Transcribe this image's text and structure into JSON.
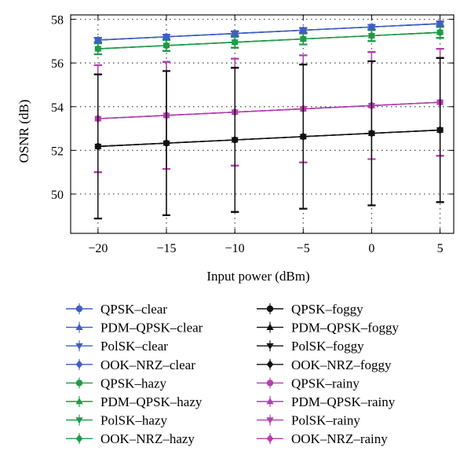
{
  "chart_data": {
    "type": "line",
    "title": "",
    "xlabel": "Input power (dBm)",
    "ylabel": "OSNR (dB)",
    "x": [
      -20,
      -15,
      -10,
      -5,
      0,
      5
    ],
    "xticks": [
      -20,
      -15,
      -10,
      -5,
      0,
      5
    ],
    "yticks": [
      50,
      52,
      54,
      56,
      58
    ],
    "xlim": [
      -22,
      6
    ],
    "ylim": [
      48.2,
      58.2
    ],
    "grid": "dotted",
    "legend_placement": "below-plot, two columns",
    "series": [
      {
        "name": "QPSK–clear",
        "color": "#3f5fbf",
        "marker": "circle",
        "values": [
          57.05,
          57.2,
          57.35,
          57.5,
          57.65,
          57.8
        ],
        "error": [
          0.1,
          0.1,
          0.1,
          0.1,
          0.1,
          0.1
        ]
      },
      {
        "name": "PDM–QPSK–clear",
        "color": "#3f5fbf",
        "marker": "triangle-up",
        "values": [
          57.05,
          57.2,
          57.35,
          57.5,
          57.65,
          57.8
        ],
        "error": [
          0.1,
          0.1,
          0.1,
          0.1,
          0.1,
          0.1
        ]
      },
      {
        "name": "PolSK–clear",
        "color": "#3f5fbf",
        "marker": "triangle-down",
        "values": [
          57.05,
          57.2,
          57.35,
          57.5,
          57.65,
          57.8
        ],
        "error": [
          0.1,
          0.1,
          0.1,
          0.1,
          0.1,
          0.1
        ]
      },
      {
        "name": "OOK–NRZ–clear",
        "color": "#3f5fbf",
        "marker": "diamond",
        "values": [
          57.05,
          57.2,
          57.35,
          57.5,
          57.65,
          57.8
        ],
        "error": [
          0.1,
          0.1,
          0.1,
          0.1,
          0.1,
          0.1
        ]
      },
      {
        "name": "QPSK–hazy",
        "color": "#1f9b46",
        "marker": "circle",
        "values": [
          56.65,
          56.8,
          56.95,
          57.1,
          57.25,
          57.4
        ],
        "error": [
          0.25,
          0.25,
          0.25,
          0.25,
          0.25,
          0.25
        ]
      },
      {
        "name": "PDM–QPSK–hazy",
        "color": "#1f9b46",
        "marker": "triangle-up",
        "values": [
          56.65,
          56.8,
          56.95,
          57.1,
          57.25,
          57.4
        ],
        "error": [
          0.25,
          0.25,
          0.25,
          0.25,
          0.25,
          0.25
        ]
      },
      {
        "name": "PolSK–hazy",
        "color": "#1f9b46",
        "marker": "triangle-down",
        "values": [
          56.65,
          56.8,
          56.95,
          57.1,
          57.25,
          57.4
        ],
        "error": [
          0.25,
          0.25,
          0.25,
          0.25,
          0.25,
          0.25
        ]
      },
      {
        "name": "OOK–NRZ–hazy",
        "color": "#1f9b46",
        "marker": "diamond",
        "values": [
          56.65,
          56.8,
          56.95,
          57.1,
          57.25,
          57.4
        ],
        "error": [
          0.25,
          0.25,
          0.25,
          0.25,
          0.25,
          0.25
        ]
      },
      {
        "name": "QPSK–foggy",
        "color": "#111111",
        "marker": "circle",
        "values": [
          52.18,
          52.33,
          52.48,
          52.63,
          52.78,
          52.93
        ],
        "error": [
          3.3,
          3.3,
          3.3,
          3.3,
          3.3,
          3.3
        ]
      },
      {
        "name": "PDM–QPSK–foggy",
        "color": "#111111",
        "marker": "triangle-up",
        "values": [
          52.18,
          52.33,
          52.48,
          52.63,
          52.78,
          52.93
        ],
        "error": [
          3.3,
          3.3,
          3.3,
          3.3,
          3.3,
          3.3
        ]
      },
      {
        "name": "PolSK–foggy",
        "color": "#111111",
        "marker": "triangle-down",
        "values": [
          52.18,
          52.33,
          52.48,
          52.63,
          52.78,
          52.93
        ],
        "error": [
          3.3,
          3.3,
          3.3,
          3.3,
          3.3,
          3.3
        ]
      },
      {
        "name": "OOK–NRZ–foggy",
        "color": "#111111",
        "marker": "diamond",
        "values": [
          52.18,
          52.33,
          52.48,
          52.63,
          52.78,
          52.93
        ],
        "error": [
          3.3,
          3.3,
          3.3,
          3.3,
          3.3,
          3.3
        ]
      },
      {
        "name": "QPSK–rainy",
        "color": "#b23fae",
        "marker": "circle",
        "values": [
          53.45,
          53.6,
          53.75,
          53.9,
          54.05,
          54.2
        ],
        "error": [
          2.45,
          2.45,
          2.45,
          2.45,
          2.45,
          2.45
        ]
      },
      {
        "name": "PDM–QPSK–rainy",
        "color": "#b23fae",
        "marker": "triangle-up",
        "values": [
          53.45,
          53.6,
          53.75,
          53.9,
          54.05,
          54.2
        ],
        "error": [
          2.45,
          2.45,
          2.45,
          2.45,
          2.45,
          2.45
        ]
      },
      {
        "name": "PolSK–rainy",
        "color": "#b23fae",
        "marker": "triangle-down",
        "values": [
          53.45,
          53.6,
          53.75,
          53.9,
          54.05,
          54.2
        ],
        "error": [
          2.45,
          2.45,
          2.45,
          2.45,
          2.45,
          2.45
        ]
      },
      {
        "name": "OOK–NRZ–rainy",
        "color": "#b23fae",
        "marker": "diamond",
        "values": [
          53.45,
          53.6,
          53.75,
          53.9,
          54.05,
          54.2
        ],
        "error": [
          2.45,
          2.45,
          2.45,
          2.45,
          2.45,
          2.45
        ]
      }
    ]
  }
}
